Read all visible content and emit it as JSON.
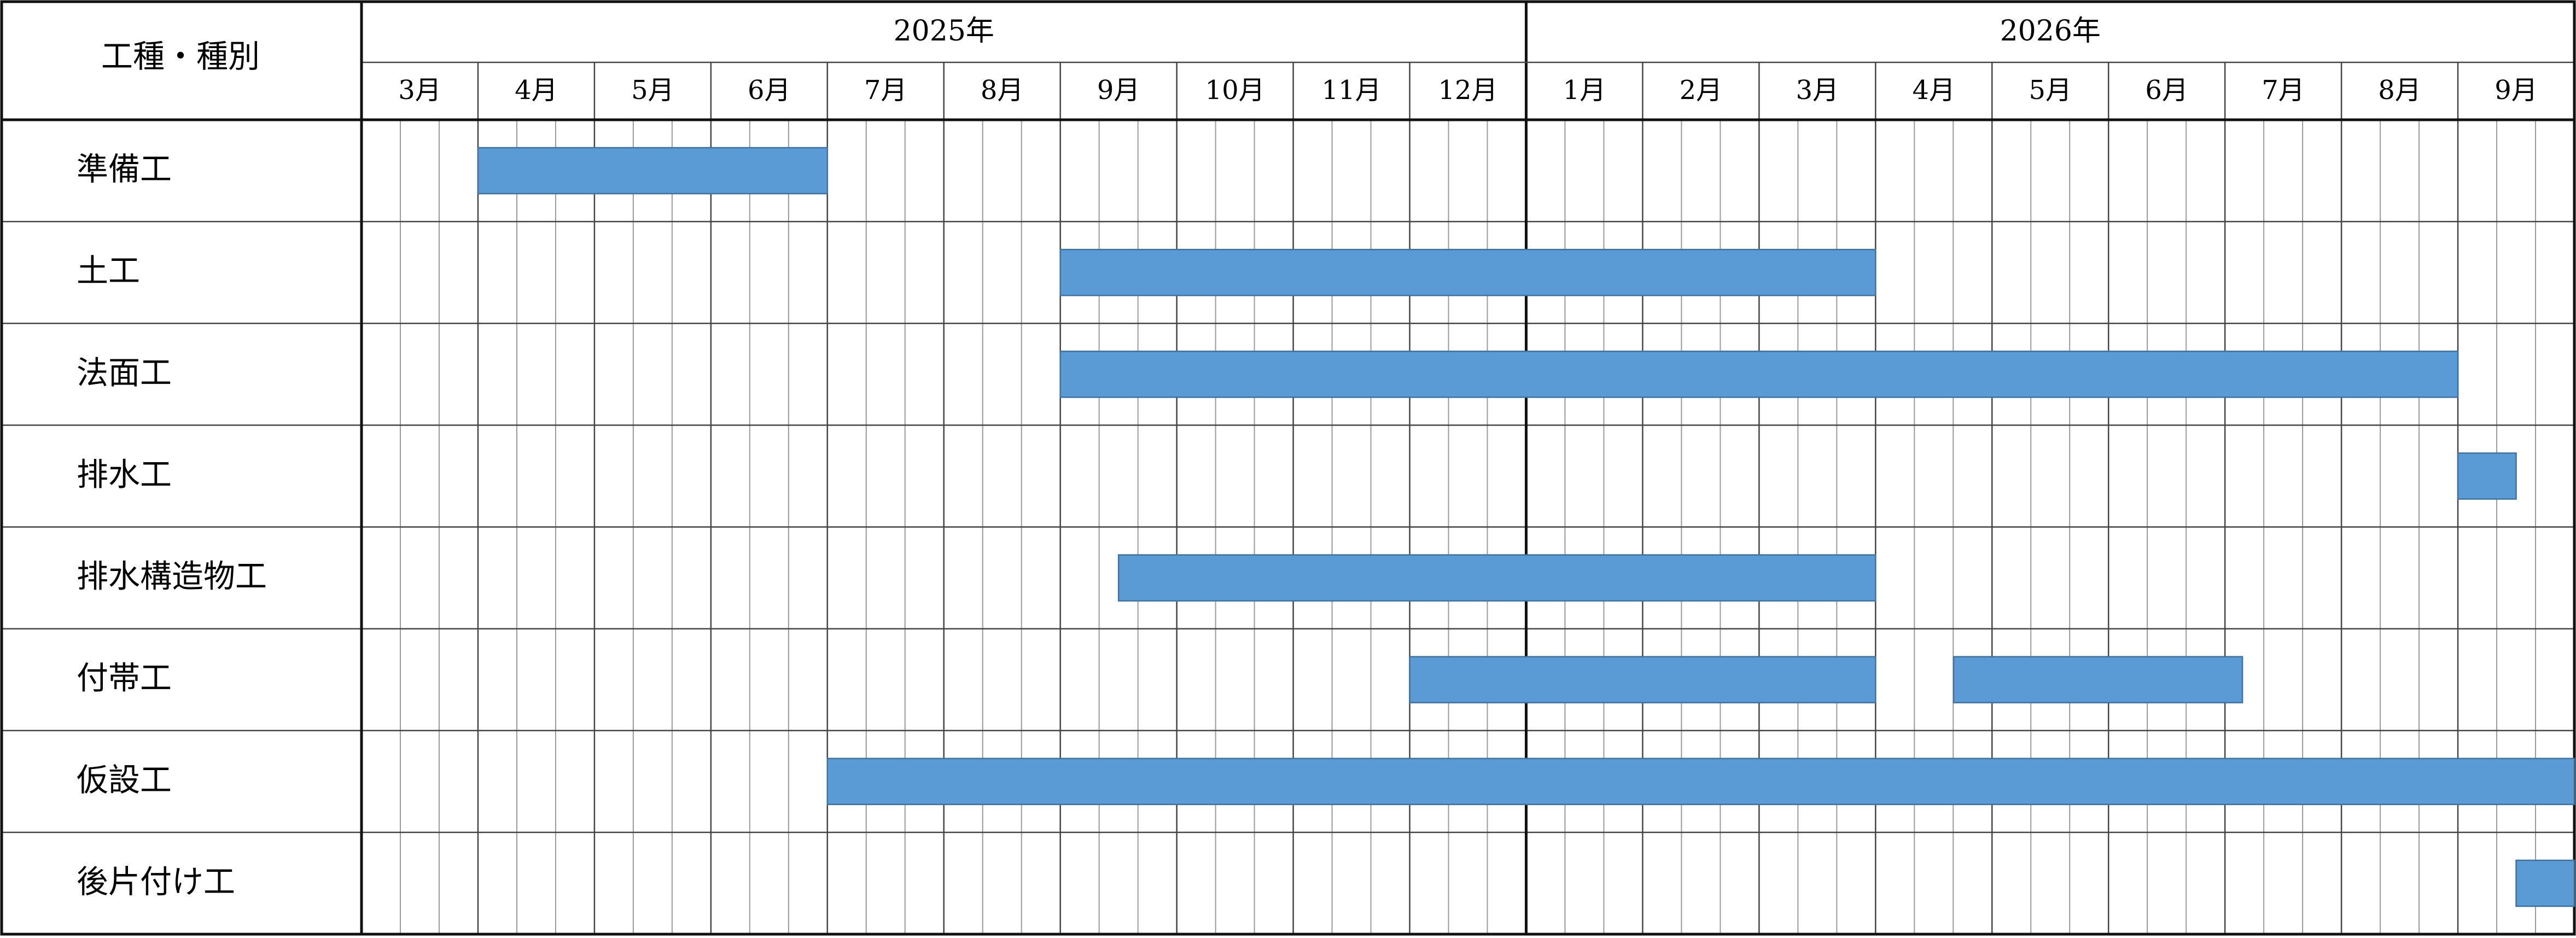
{
  "chart_data": {
    "type": "gantt",
    "header": "工種・種別",
    "years": [
      {
        "label": "2025年",
        "months": [
          "3月",
          "4月",
          "5月",
          "6月",
          "7月",
          "8月",
          "9月",
          "10月",
          "11月",
          "12月"
        ]
      },
      {
        "label": "2026年",
        "months": [
          "1月",
          "2月",
          "3月",
          "4月",
          "5月",
          "6月",
          "7月",
          "8月",
          "9月"
        ]
      }
    ],
    "xlim": [
      0,
      19
    ],
    "subdivisions": 3,
    "color": "#5b9bd5",
    "tasks": [
      {
        "name": "準備工",
        "bars": [
          [
            1,
            4
          ]
        ]
      },
      {
        "name": "土工",
        "bars": [
          [
            6,
            13
          ]
        ]
      },
      {
        "name": "法面工",
        "bars": [
          [
            6,
            18
          ]
        ]
      },
      {
        "name": "排水工",
        "bars": [
          [
            18,
            18.5
          ]
        ]
      },
      {
        "name": "排水構造物工",
        "bars": [
          [
            6.5,
            13
          ]
        ]
      },
      {
        "name": "付帯工",
        "bars": [
          [
            9,
            13
          ],
          [
            13.67,
            16.15
          ]
        ]
      },
      {
        "name": "仮設工",
        "bars": [
          [
            4,
            19
          ]
        ]
      },
      {
        "name": "後片付け工",
        "bars": [
          [
            18.5,
            19
          ]
        ]
      }
    ]
  }
}
